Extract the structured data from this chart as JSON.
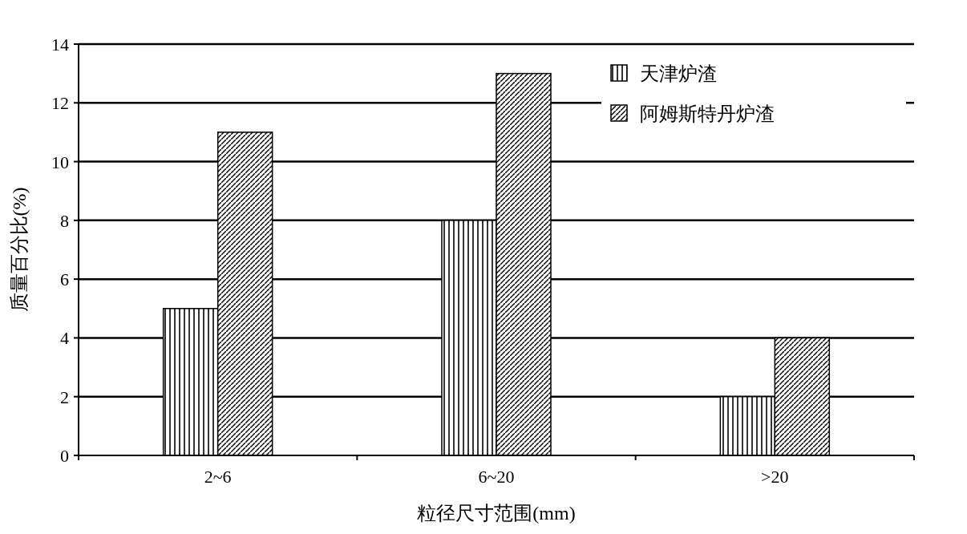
{
  "chart_data": {
    "type": "bar",
    "xlabel": "粒径尺寸范围(mm)",
    "ylabel": "质量百分比(%)",
    "categories": [
      "2~6",
      "6~20",
      ">20"
    ],
    "series": [
      {
        "name": "天津炉渣",
        "color": "#000000",
        "values": [
          5,
          8,
          2
        ]
      },
      {
        "name": "阿姆斯特丹炉渣",
        "color": "#000000",
        "values": [
          11,
          13,
          4
        ]
      }
    ],
    "ylim": [
      0,
      14
    ],
    "yticks": [
      0,
      2,
      4,
      6,
      8,
      10,
      12,
      14
    ],
    "grid": "y",
    "legend": "top right"
  }
}
